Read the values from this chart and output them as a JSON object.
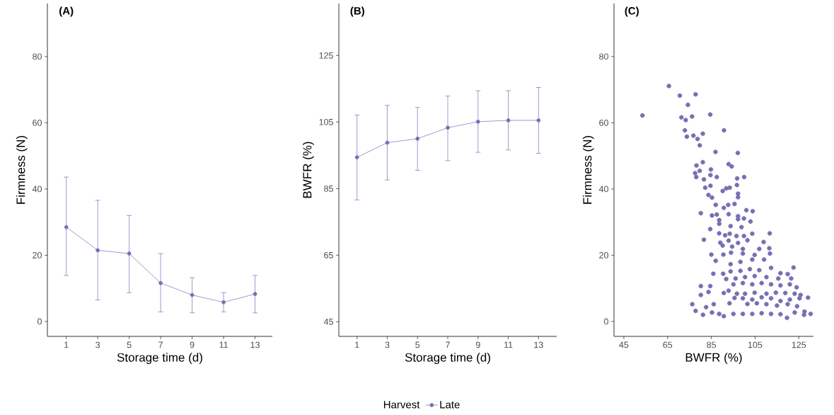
{
  "chart_data": [
    {
      "type": "line",
      "title": "(A)",
      "xlabel": "Storage time (d)",
      "ylabel": "Firmness (N)",
      "marker": "circle",
      "line_style": "solid",
      "grid": false,
      "x": [
        1,
        3,
        5,
        7,
        9,
        11,
        13
      ],
      "xlim": [
        -0.2,
        14.1
      ],
      "ylim": [
        -4.5,
        96
      ],
      "xticks": [
        1,
        3,
        5,
        7,
        9,
        11,
        13
      ],
      "yticks": [
        0,
        20,
        40,
        60,
        80
      ],
      "series": [
        {
          "color": "#7570b3",
          "values": [
            28.5,
            21.5,
            20.5,
            11.6,
            8.0,
            5.8,
            8.3
          ],
          "errors": [
            [
              13.9,
              43.6
            ],
            [
              6.5,
              36.6
            ],
            [
              8.7,
              32.0
            ],
            [
              2.9,
              20.5
            ],
            [
              2.6,
              13.2
            ],
            [
              2.9,
              8.7
            ],
            [
              2.6,
              13.9
            ]
          ]
        }
      ]
    },
    {
      "type": "line",
      "title": "(B)",
      "xlabel": "Storage time (d)",
      "ylabel": "BWFR (%)",
      "marker": "circle",
      "line_style": "solid",
      "grid": false,
      "legend": "bottom",
      "legend_title": "Harvest",
      "x": [
        1,
        3,
        5,
        7,
        9,
        11,
        13
      ],
      "xlim": [
        -0.2,
        14.2
      ],
      "ylim": [
        40.6,
        140.6
      ],
      "xticks": [
        1,
        3,
        5,
        7,
        9,
        11,
        13
      ],
      "yticks": [
        45,
        65,
        85,
        105,
        125
      ],
      "series": [
        {
          "name": "Late",
          "color": "#7570b3",
          "values": [
            94.4,
            98.8,
            100.0,
            103.3,
            105.1,
            105.5,
            105.5
          ],
          "errors": [
            [
              81.6,
              107.1
            ],
            [
              87.6,
              110.0
            ],
            [
              90.5,
              109.4
            ],
            [
              93.4,
              112.8
            ],
            [
              95.9,
              114.4
            ],
            [
              96.6,
              114.4
            ],
            [
              95.6,
              115.4
            ]
          ]
        }
      ]
    },
    {
      "type": "scatter",
      "title": "(C)",
      "xlabel": "BWFR (%)",
      "ylabel": "Firmness (N)",
      "marker": "circle",
      "grid": false,
      "xlim": [
        40.5,
        131.7
      ],
      "ylim": [
        -4.5,
        96
      ],
      "xticks": [
        45,
        65,
        85,
        105,
        125
      ],
      "yticks": [
        0,
        20,
        40,
        60,
        80
      ],
      "series": [
        {
          "color": "#7570b3",
          "x": [
            65.6,
            70.6,
            77.8,
            74.3,
            53.5,
            84.5,
            71.3,
            73.3,
            76.2,
            90.8,
            72.9,
            73.8,
            76.8,
            78.7,
            81.1,
            79.7,
            86.9,
            97.1,
            81.1,
            78.2,
            79.7,
            77.6,
            84.8,
            92.9,
            94.3,
            78.1,
            81.6,
            84.6,
            87.5,
            96.8,
            100.0,
            82.2,
            84.6,
            90.2,
            91.8,
            93.4,
            96.7,
            83.7,
            85.3,
            97.2,
            97.2,
            95.6,
            87.0,
            90.7,
            92.7,
            80.2,
            85.3,
            87.5,
            92.9,
            97.2,
            101.0,
            103.9,
            88.6,
            97.2,
            99.9,
            102.9,
            88.6,
            93.8,
            98.8,
            84.5,
            88.6,
            91.3,
            93.4,
            96.5,
            99.9,
            103.7,
            111.7,
            81.6,
            89.1,
            92.9,
            97.2,
            101.5,
            108.9,
            90.2,
            94.5,
            99.4,
            106.9,
            111.5,
            85.0,
            90.5,
            94.0,
            99.4,
            104.8,
            111.8,
            87.0,
            93.8,
            98.3,
            103.7,
            109.1,
            122.6,
            85.9,
            90.4,
            93.8,
            98.3,
            102.6,
            106.9,
            112.3,
            116.6,
            119.9,
            91.8,
            96.1,
            100.4,
            104.8,
            110.2,
            115.6,
            121.5,
            80.2,
            84.5,
            95.1,
            99.4,
            103.7,
            108.0,
            112.3,
            116.6,
            120.9,
            124.0,
            80.2,
            83.7,
            90.7,
            92.9,
            96.7,
            100.4,
            104.8,
            110.2,
            114.5,
            118.8,
            123.1,
            125.8,
            129.2,
            95.6,
            99.4,
            103.7,
            108.0,
            112.3,
            116.6,
            120.9,
            125.3,
            76.3,
            86.1,
            93.3,
            101.5,
            105.8,
            110.2,
            115.0,
            119.9,
            124.2,
            77.8,
            82.6,
            81.2,
            85.3,
            88.6,
            90.7,
            95.1,
            99.4,
            103.7,
            108.0,
            112.3,
            116.6,
            119.6,
            123.1,
            127.6,
            130.4,
            127.4
          ],
          "values": [
            71.1,
            68.2,
            68.6,
            65.4,
            62.2,
            62.5,
            61.6,
            60.8,
            61.9,
            57.7,
            57.7,
            55.8,
            56.1,
            55.1,
            56.7,
            53.2,
            51.2,
            50.9,
            48.1,
            47.1,
            45.5,
            44.8,
            45.9,
            47.5,
            46.8,
            43.6,
            42.9,
            44.2,
            43.6,
            43.2,
            43.6,
            40.4,
            41.0,
            39.4,
            40.2,
            40.4,
            41.2,
            38.2,
            37.4,
            38.6,
            37.5,
            35.5,
            35.2,
            34.3,
            35.2,
            32.7,
            32.0,
            32.3,
            32.4,
            31.8,
            33.6,
            33.3,
            30.6,
            30.9,
            31.1,
            30.2,
            29.5,
            28.8,
            28.5,
            27.9,
            26.6,
            26.0,
            26.5,
            25.8,
            25.8,
            26.5,
            26.6,
            24.7,
            23.8,
            24.4,
            23.7,
            24.5,
            24.0,
            22.9,
            22.6,
            21.9,
            21.9,
            22.1,
            20.2,
            20.2,
            20.8,
            20.5,
            20.1,
            20.5,
            18.3,
            17.3,
            18.0,
            18.7,
            18.7,
            16.3,
            14.4,
            14.4,
            15.1,
            15.3,
            15.8,
            15.5,
            16.2,
            14.6,
            14.3,
            12.8,
            13.0,
            13.4,
            13.7,
            13.4,
            13.0,
            13.0,
            10.7,
            10.7,
            11.2,
            11.6,
            11.2,
            11.6,
            11.2,
            10.9,
            11.2,
            10.3,
            8.0,
            8.9,
            8.6,
            9.3,
            8.4,
            8.4,
            8.7,
            8.4,
            8.7,
            8.6,
            8.4,
            8.0,
            7.2,
            7.1,
            7.0,
            6.6,
            7.3,
            7.0,
            6.2,
            6.6,
            7.0,
            5.2,
            5.2,
            5.5,
            5.3,
            5.5,
            5.2,
            4.8,
            5.2,
            4.6,
            3.2,
            4.3,
            2.0,
            2.7,
            2.3,
            1.6,
            2.3,
            2.3,
            2.3,
            2.5,
            2.3,
            2.2,
            1.1,
            2.7,
            3.0,
            2.3,
            2.0
          ]
        }
      ]
    }
  ]
}
